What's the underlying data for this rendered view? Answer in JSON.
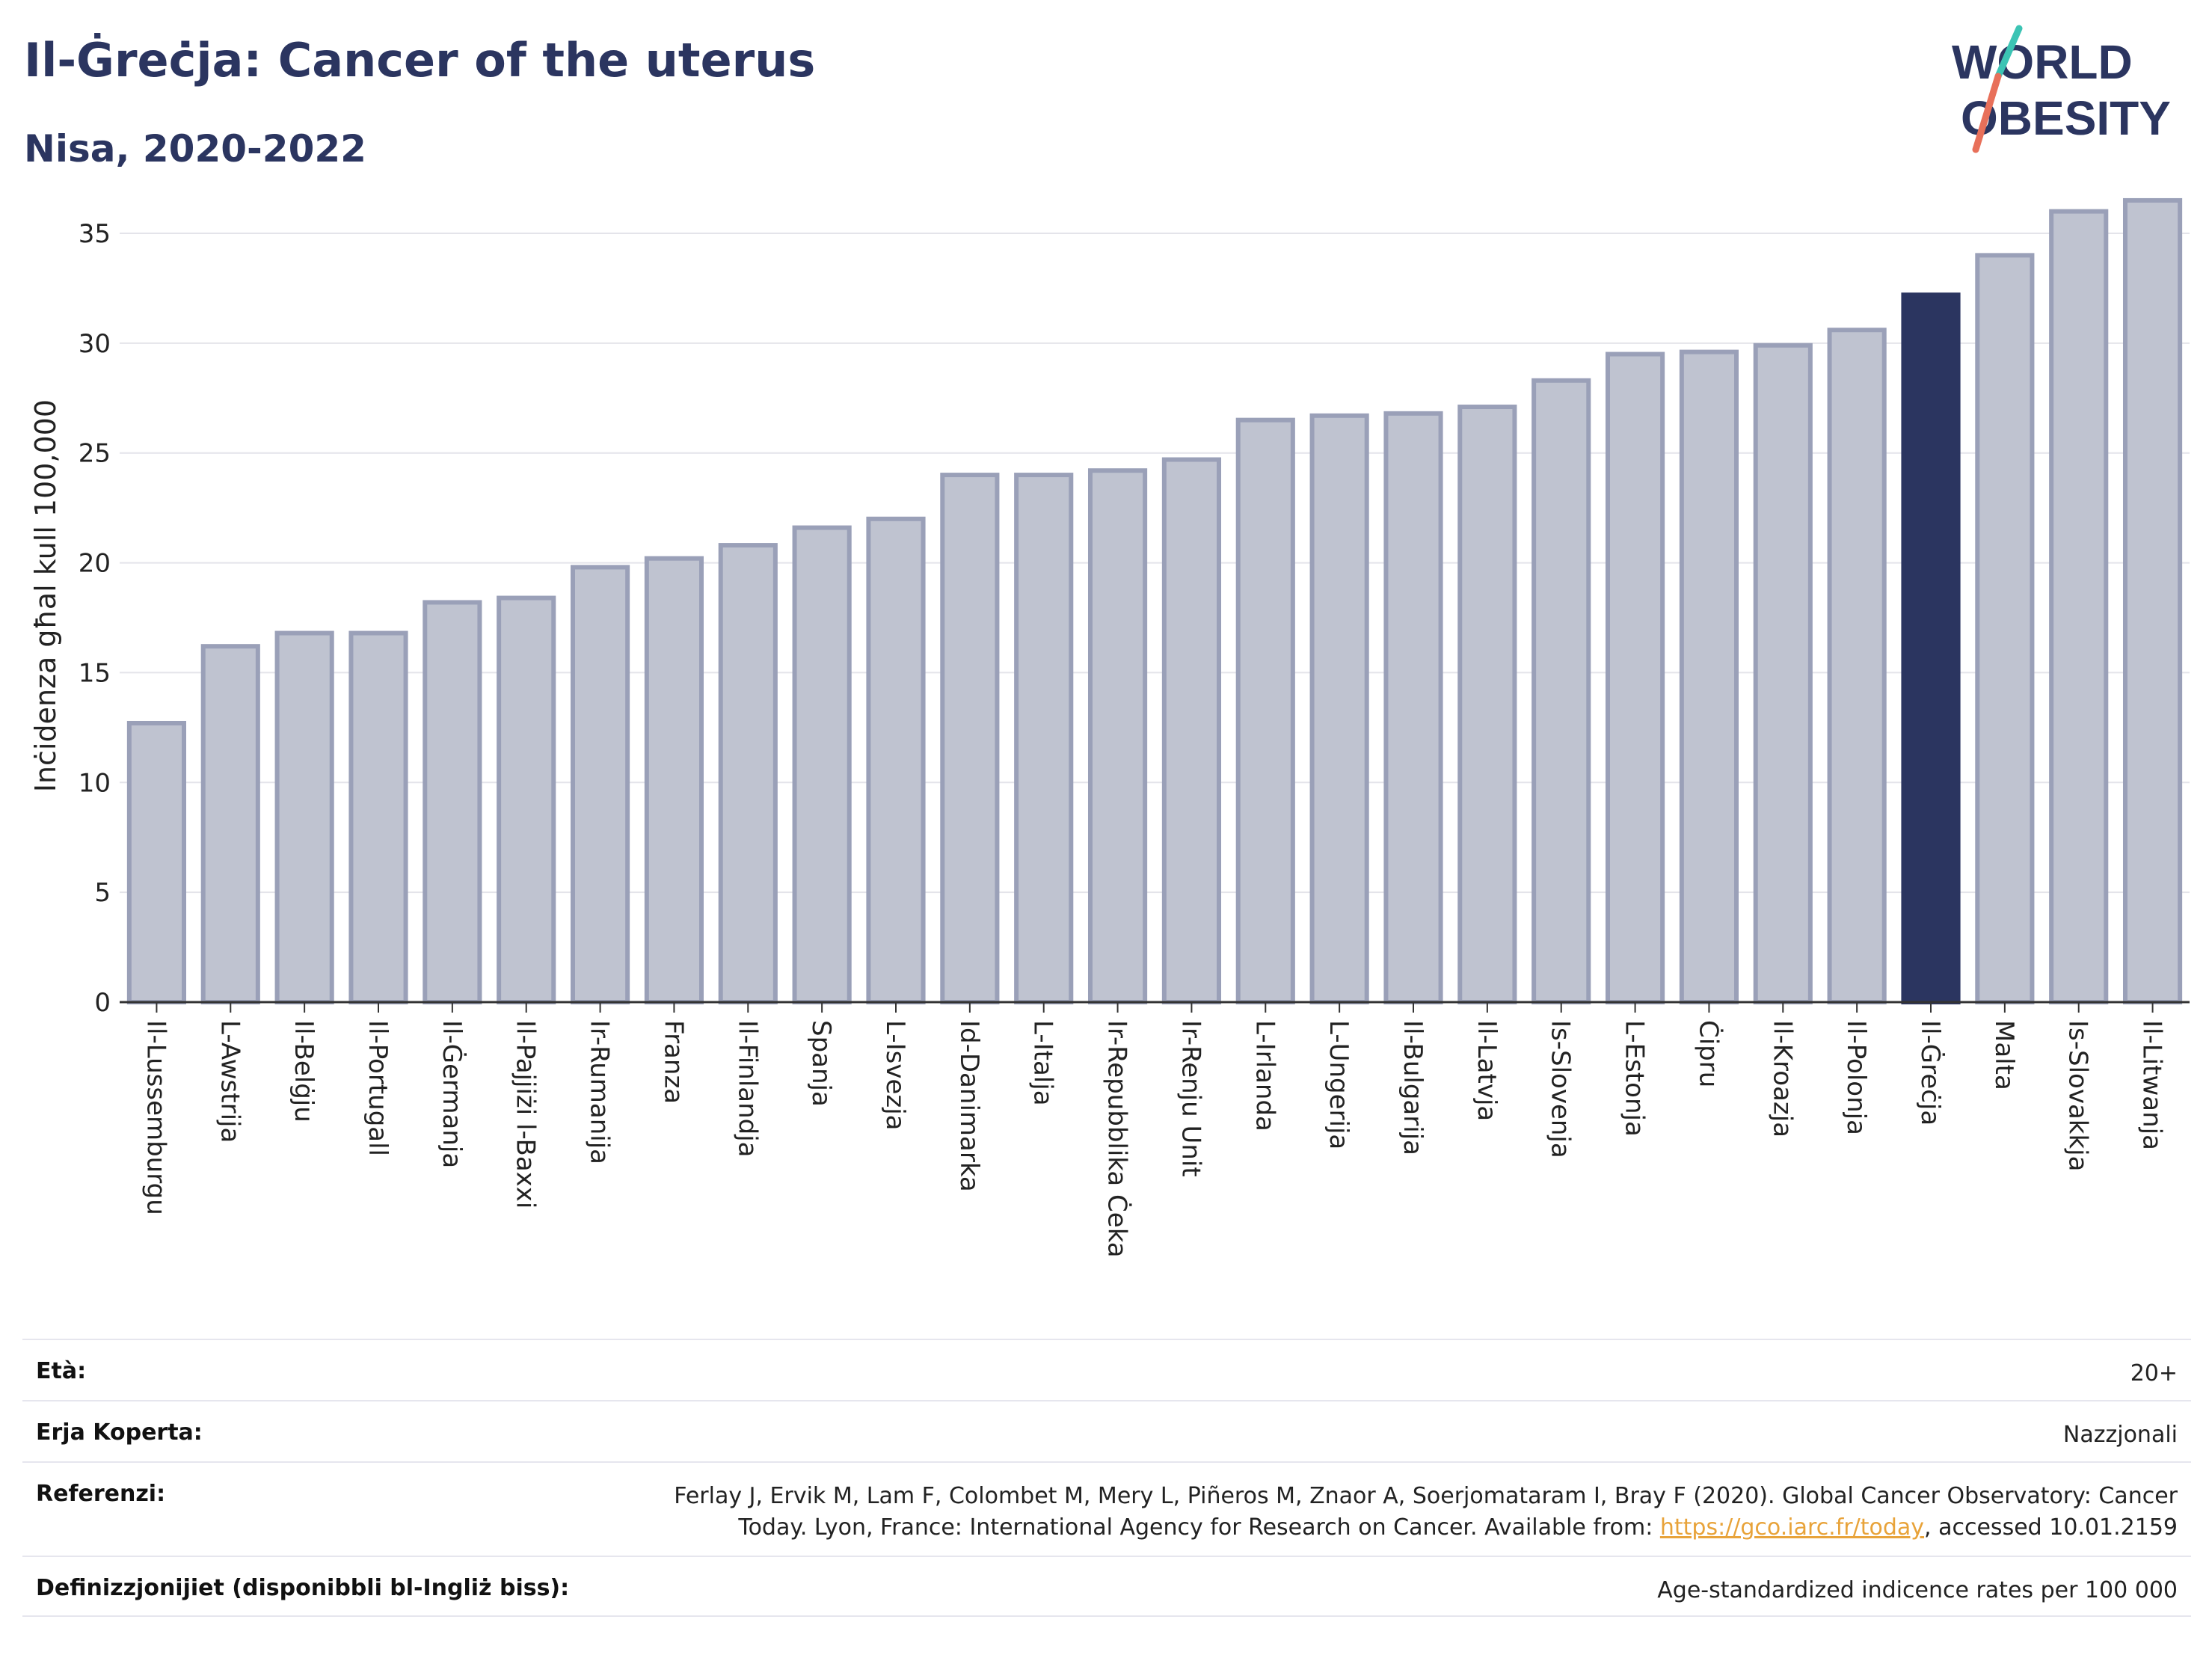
{
  "header": {
    "title": "Il-Ġreċja: Cancer of the uterus",
    "subtitle": "Nisa, 2020-2022"
  },
  "logo": {
    "line1": "WORLD",
    "line2": "OBESITY",
    "accent_colors": [
      "#3cc4b4",
      "#e8705a"
    ]
  },
  "chart_data": {
    "type": "bar",
    "title": "Il-Ġreċja: Cancer of the uterus",
    "subtitle": "Nisa, 2020-2022",
    "ylabel": "Inċidenza għal kull 100,000",
    "xlabel": "",
    "ylim": [
      0,
      37
    ],
    "yticks": [
      0,
      5,
      10,
      15,
      20,
      25,
      30,
      35
    ],
    "grid": true,
    "highlight": "Il-Ġreċja",
    "colors": {
      "bar": "#bfc3d0",
      "bar_border": "#9aa0b8",
      "highlight": "#2b3560"
    },
    "categories": [
      "Il-Lussemburgu",
      "L-Awstrija",
      "Il-Belġju",
      "Il-Portugall",
      "Il-Ġermanja",
      "Il-Pajjiżi l-Baxxi",
      "Ir-Rumanija",
      "Franza",
      "Il-Finlandja",
      "Spanja",
      "L-Isvezja",
      "Id-Danimarka",
      "L-Italja",
      "Ir-Repubblika Ċeka",
      "Ir-Renju Unit",
      "L-Irlanda",
      "L-Ungerija",
      "Il-Bulgarija",
      "Il-Latvja",
      "Is-Slovenja",
      "L-Estonja",
      "Ċipru",
      "Il-Kroazja",
      "Il-Polonja",
      "Il-Ġreċja",
      "Malta",
      "Is-Slovakkja",
      "Il-Litwanja"
    ],
    "values": [
      12.7,
      16.2,
      16.8,
      16.8,
      18.2,
      18.4,
      19.8,
      20.2,
      20.8,
      21.6,
      22.0,
      24.0,
      24.0,
      24.2,
      24.7,
      26.5,
      26.7,
      26.8,
      27.1,
      28.3,
      29.5,
      29.6,
      29.9,
      30.6,
      32.2,
      34.0,
      36.0,
      36.5
    ]
  },
  "meta": {
    "age_label": "Età:",
    "age_value": "20+",
    "area_label": "Erja Koperta:",
    "area_value": "Nazzjonali",
    "ref_label": "Referenzi:",
    "ref_line1": "Ferlay J, Ervik M, Lam F, Colombet M, Mery L, Piñeros M, Znaor A, Soerjomataram I, Bray F (2020). Global Cancer Observatory: Cancer",
    "ref_line2_pre": "Today. Lyon, France: International Agency for Research on Cancer. Available from: ",
    "ref_link": "https://gco.iarc.fr/today",
    "ref_line2_post": ", accessed 10.01.2159",
    "def_label": "Definizzjonijiet (disponibbli bl-Ingliż biss):",
    "def_value": "Age-standardized indicence rates per 100 000"
  }
}
